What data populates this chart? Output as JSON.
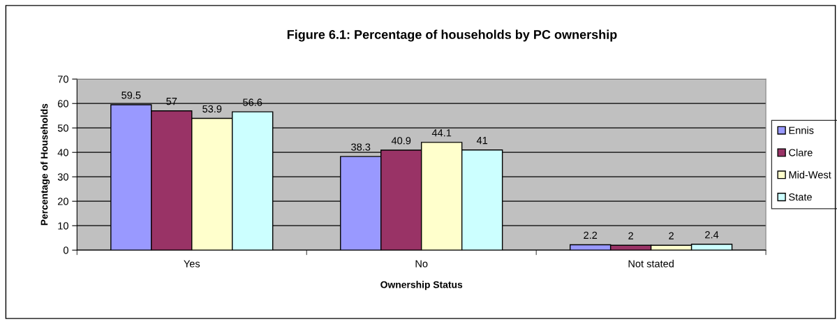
{
  "chart_data": {
    "type": "bar",
    "title": "Figure 6.1: Percentage of households by PC ownership",
    "xlabel": "Ownership Status",
    "ylabel": "Percentage of Households",
    "categories": [
      "Yes",
      "No",
      "Not stated"
    ],
    "series": [
      {
        "name": "Ennis",
        "color": "#9999ff",
        "values": [
          59.5,
          38.3,
          2.2
        ]
      },
      {
        "name": "Clare",
        "color": "#993366",
        "values": [
          57,
          40.9,
          2
        ]
      },
      {
        "name": "Mid-West",
        "color": "#ffffcc",
        "values": [
          53.9,
          44.1,
          2
        ]
      },
      {
        "name": "State",
        "color": "#ccffff",
        "values": [
          56.6,
          41,
          2.4
        ]
      }
    ],
    "ylim": [
      0,
      70
    ],
    "yticks": [
      0,
      10,
      20,
      30,
      40,
      50,
      60,
      70
    ],
    "grid": "y",
    "legend": "right",
    "data_labels": true
  }
}
